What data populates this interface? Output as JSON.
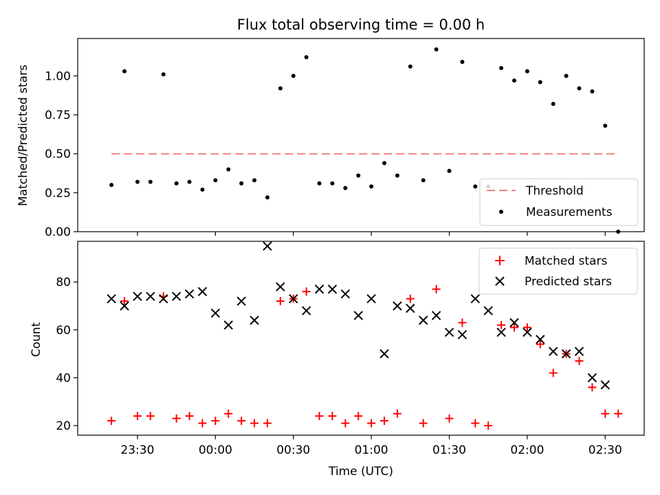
{
  "chart_data": [
    {
      "type": "scatter",
      "title": "Flux total observing time = 0.00 h",
      "xlabel": "",
      "ylabel": "Matched/Predicted stars",
      "ylim": [
        0.0,
        1.24
      ],
      "xlim": [
        "23:07",
        "02:45"
      ],
      "yticks": [
        "0.00",
        "0.25",
        "0.50",
        "0.75",
        "1.00"
      ],
      "legend_position": "lower-right",
      "threshold": {
        "name": "Threshold",
        "value": 0.5,
        "x_start": "23:20",
        "x_end": "02:35",
        "color": "#f08080",
        "style": "dashed"
      },
      "series": [
        {
          "name": "Measurements",
          "marker": "dot",
          "color": "#000000",
          "x": [
            "23:20",
            "23:25",
            "23:30",
            "23:35",
            "23:40",
            "23:45",
            "23:50",
            "23:55",
            "00:00",
            "00:05",
            "00:10",
            "00:15",
            "00:20",
            "00:25",
            "00:30",
            "00:35",
            "00:40",
            "00:45",
            "00:50",
            "00:55",
            "01:00",
            "01:05",
            "01:10",
            "01:15",
            "01:20",
            "01:25",
            "01:30",
            "01:35",
            "01:40",
            "01:45",
            "01:50",
            "01:55",
            "02:00",
            "02:05",
            "02:10",
            "02:15",
            "02:20",
            "02:25",
            "02:30",
            "02:35"
          ],
          "y": [
            0.3,
            1.03,
            0.32,
            0.32,
            1.01,
            0.31,
            0.32,
            0.27,
            0.33,
            0.4,
            0.31,
            0.33,
            0.22,
            0.92,
            1.0,
            1.12,
            0.31,
            0.31,
            0.28,
            0.36,
            0.29,
            0.44,
            0.36,
            1.06,
            0.33,
            1.17,
            0.39,
            1.09,
            0.29,
            0.29,
            1.05,
            0.97,
            1.03,
            0.96,
            0.82,
            1.0,
            0.92,
            0.9,
            0.68,
            0.0
          ]
        }
      ]
    },
    {
      "type": "scatter",
      "title": "",
      "xlabel": "Time (UTC)",
      "ylabel": "Count",
      "ylim": [
        16,
        97
      ],
      "xlim": [
        "23:07",
        "02:45"
      ],
      "yticks": [
        "20",
        "40",
        "60",
        "80"
      ],
      "xticks": [
        "23:30",
        "00:00",
        "00:30",
        "01:00",
        "01:30",
        "02:00",
        "02:30"
      ],
      "legend_position": "top-right",
      "series": [
        {
          "name": "Matched stars",
          "marker": "plus",
          "color": "#ff0000",
          "x": [
            "23:20",
            "23:25",
            "23:30",
            "23:35",
            "23:40",
            "23:45",
            "23:50",
            "23:55",
            "00:00",
            "00:05",
            "00:10",
            "00:15",
            "00:20",
            "00:25",
            "00:30",
            "00:35",
            "00:40",
            "00:45",
            "00:50",
            "00:55",
            "01:00",
            "01:05",
            "01:10",
            "01:15",
            "01:20",
            "01:25",
            "01:30",
            "01:35",
            "01:40",
            "01:45",
            "01:50",
            "01:55",
            "02:00",
            "02:05",
            "02:10",
            "02:15",
            "02:20",
            "02:25",
            "02:30",
            "02:35"
          ],
          "y": [
            22,
            72,
            24,
            24,
            74,
            23,
            24,
            21,
            22,
            25,
            22,
            21,
            21,
            72,
            73,
            76,
            24,
            24,
            21,
            24,
            21,
            22,
            25,
            73,
            21,
            77,
            23,
            63,
            21,
            20,
            62,
            61,
            61,
            54,
            42,
            50,
            47,
            36,
            25,
            25
          ]
        },
        {
          "name": "Predicted stars",
          "marker": "x",
          "color": "#000000",
          "x": [
            "23:20",
            "23:25",
            "23:30",
            "23:35",
            "23:40",
            "23:45",
            "23:50",
            "23:55",
            "00:00",
            "00:05",
            "00:10",
            "00:15",
            "00:20",
            "00:25",
            "00:30",
            "00:35",
            "00:40",
            "00:45",
            "00:50",
            "00:55",
            "01:00",
            "01:05",
            "01:10",
            "01:15",
            "01:20",
            "01:25",
            "01:30",
            "01:35",
            "01:40",
            "01:45",
            "01:50",
            "01:55",
            "02:00",
            "02:05",
            "02:10",
            "02:15",
            "02:20",
            "02:25",
            "02:30"
          ],
          "y": [
            73,
            70,
            74,
            74,
            73,
            74,
            75,
            76,
            67,
            62,
            72,
            64,
            95,
            78,
            73,
            68,
            77,
            77,
            75,
            66,
            73,
            50,
            70,
            69,
            64,
            66,
            59,
            58,
            73,
            68,
            59,
            63,
            59,
            56,
            51,
            50,
            51,
            40,
            37
          ]
        }
      ]
    }
  ]
}
